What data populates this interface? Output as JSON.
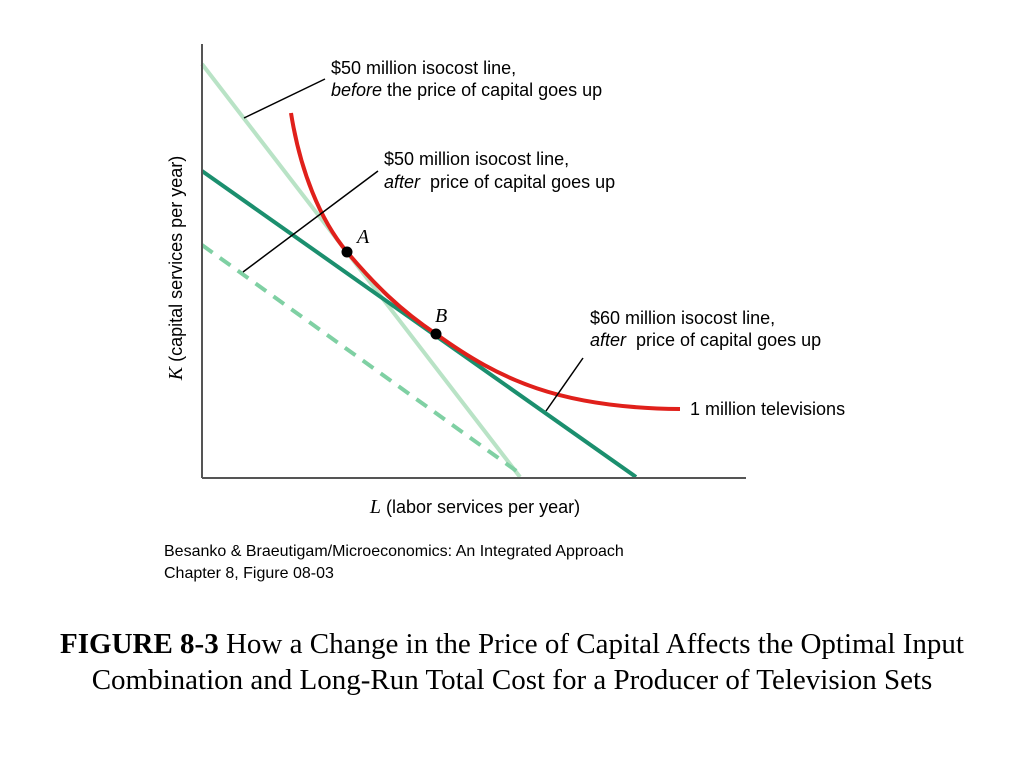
{
  "axes": {
    "y_label_var": "K",
    "y_label_rest": " (capital services per year)",
    "x_label_var": "L",
    "x_label_rest": " (labor services per year)"
  },
  "annotations": {
    "before_line_1": "$50 million isocost line,",
    "before_line_2_italic": "before",
    "before_line_2_rest": " the price of capital goes up",
    "after50_line_1": "$50 million isocost line,",
    "after50_line_2_italic": "after",
    "after50_line_2_rest": "  price of capital goes up",
    "after60_line_1": "$60 million isocost line,",
    "after60_line_2_italic": "after",
    "after60_line_2_rest": "  price of capital goes up",
    "isoquant_label": "1 million televisions"
  },
  "points": {
    "a": "A",
    "b": "B"
  },
  "colors": {
    "isoquant": "#e0201b",
    "before_line": "#b9e3c6",
    "after_lines": "#1b8f6e",
    "dashed_line": "#7fd0a3",
    "axis": "#555555"
  },
  "source": {
    "line1": "Besanko & Braeutigam/Microeconomics: An Integrated Approach",
    "line2": "Chapter 8, Figure 08-03"
  },
  "caption": {
    "figure_number": "FIGURE 8-3",
    "title": " How a Change in the Price of Capital Affects the Optimal Input Combination and Long-Run Total Cost for a Producer of Television Sets"
  }
}
